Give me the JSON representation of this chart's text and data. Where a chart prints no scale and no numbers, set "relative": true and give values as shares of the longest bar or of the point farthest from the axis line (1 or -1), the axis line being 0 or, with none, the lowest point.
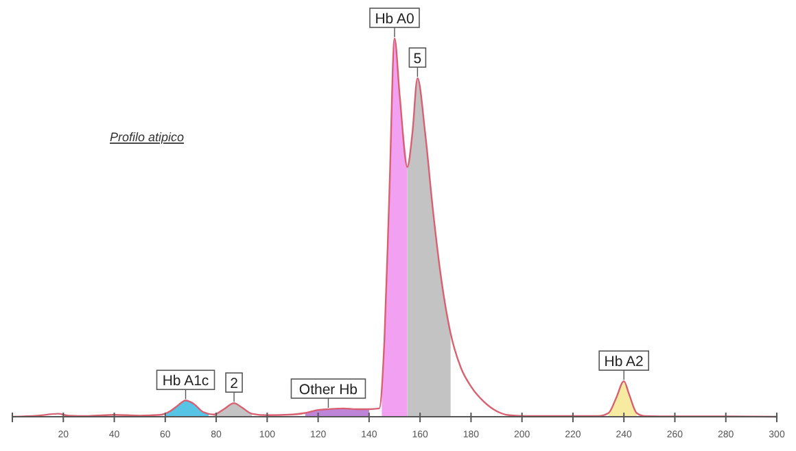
{
  "chart_data": {
    "type": "line",
    "title": "Profilo atipico",
    "relative": true,
    "xlim": [
      0,
      300
    ],
    "xticks": [
      {
        "value": 0,
        "label": null
      },
      20,
      40,
      60,
      80,
      100,
      120,
      140,
      160,
      180,
      200,
      220,
      240,
      260,
      280,
      300
    ],
    "grid": false,
    "marker": "none",
    "line_style": "solid",
    "series": [
      {
        "type": "area",
        "color": "#3ab8e0",
        "x": [
          60,
          62,
          65,
          68,
          71,
          75,
          77
        ],
        "values": [
          0.005,
          0.015,
          0.03,
          0.043,
          0.035,
          0.012,
          0.008
        ]
      },
      {
        "type": "area",
        "color": "#b8b8b8",
        "x": [
          79,
          83,
          87,
          90,
          94
        ],
        "values": [
          0.006,
          0.02,
          0.036,
          0.025,
          0.008
        ]
      },
      {
        "type": "area",
        "color": "#b070d0",
        "x": [
          115,
          120,
          124,
          130,
          135,
          140
        ],
        "values": [
          0.01,
          0.018,
          0.02,
          0.022,
          0.02,
          0.02
        ]
      },
      {
        "type": "area",
        "color": "#f090f0",
        "x": [
          145,
          146,
          148,
          150,
          152,
          155
        ],
        "values": [
          0.05,
          0.2,
          0.6,
          1,
          0.85,
          0.66
        ]
      },
      {
        "type": "area",
        "color": "#b8b8b8",
        "x": [
          155,
          157,
          159,
          162,
          165,
          168,
          172
        ],
        "values": [
          0.66,
          0.75,
          0.895,
          0.75,
          0.55,
          0.38,
          0.22
        ]
      },
      {
        "type": "area",
        "color": "#f5e890",
        "x": [
          234,
          237,
          240,
          242,
          245
        ],
        "values": [
          0.01,
          0.05,
          0.094,
          0.06,
          0.01
        ]
      },
      {
        "color": "#d86070",
        "x": [
          0,
          10,
          18,
          22,
          30,
          40,
          50,
          58,
          62,
          65,
          68,
          71,
          75,
          79,
          83,
          87,
          90,
          94,
          100,
          110,
          115,
          120,
          124,
          130,
          135,
          140,
          144,
          146,
          148,
          150,
          152,
          155,
          157,
          159,
          162,
          165,
          168,
          172,
          176,
          180,
          185,
          190,
          195,
          200,
          230,
          234,
          237,
          240,
          242,
          245,
          248,
          260,
          280,
          300
        ],
        "values": [
          0,
          0.003,
          0.008,
          0.003,
          0.002,
          0.005,
          0.003,
          0.005,
          0.015,
          0.03,
          0.043,
          0.035,
          0.012,
          0.006,
          0.02,
          0.036,
          0.025,
          0.008,
          0.004,
          0.006,
          0.01,
          0.018,
          0.02,
          0.022,
          0.02,
          0.02,
          0.022,
          0.2,
          0.6,
          1,
          0.85,
          0.66,
          0.75,
          0.895,
          0.75,
          0.55,
          0.38,
          0.22,
          0.13,
          0.08,
          0.04,
          0.015,
          0.004,
          0.002,
          0.002,
          0.01,
          0.05,
          0.094,
          0.06,
          0.01,
          0.002,
          0.001,
          0.001,
          0
        ]
      }
    ],
    "annotations": [
      {
        "text": "Hb A0",
        "x": 150,
        "y": 1
      },
      {
        "text": "5",
        "x": 159,
        "y": 0.895
      },
      {
        "text": "Hb A1c",
        "x": 68,
        "y": 0.043
      },
      {
        "text": "2",
        "x": 87,
        "y": 0.036
      },
      {
        "text": "Other Hb",
        "x": 124,
        "y": 0.02
      },
      {
        "text": "Hb A2",
        "x": 240,
        "y": 0.094
      }
    ]
  }
}
